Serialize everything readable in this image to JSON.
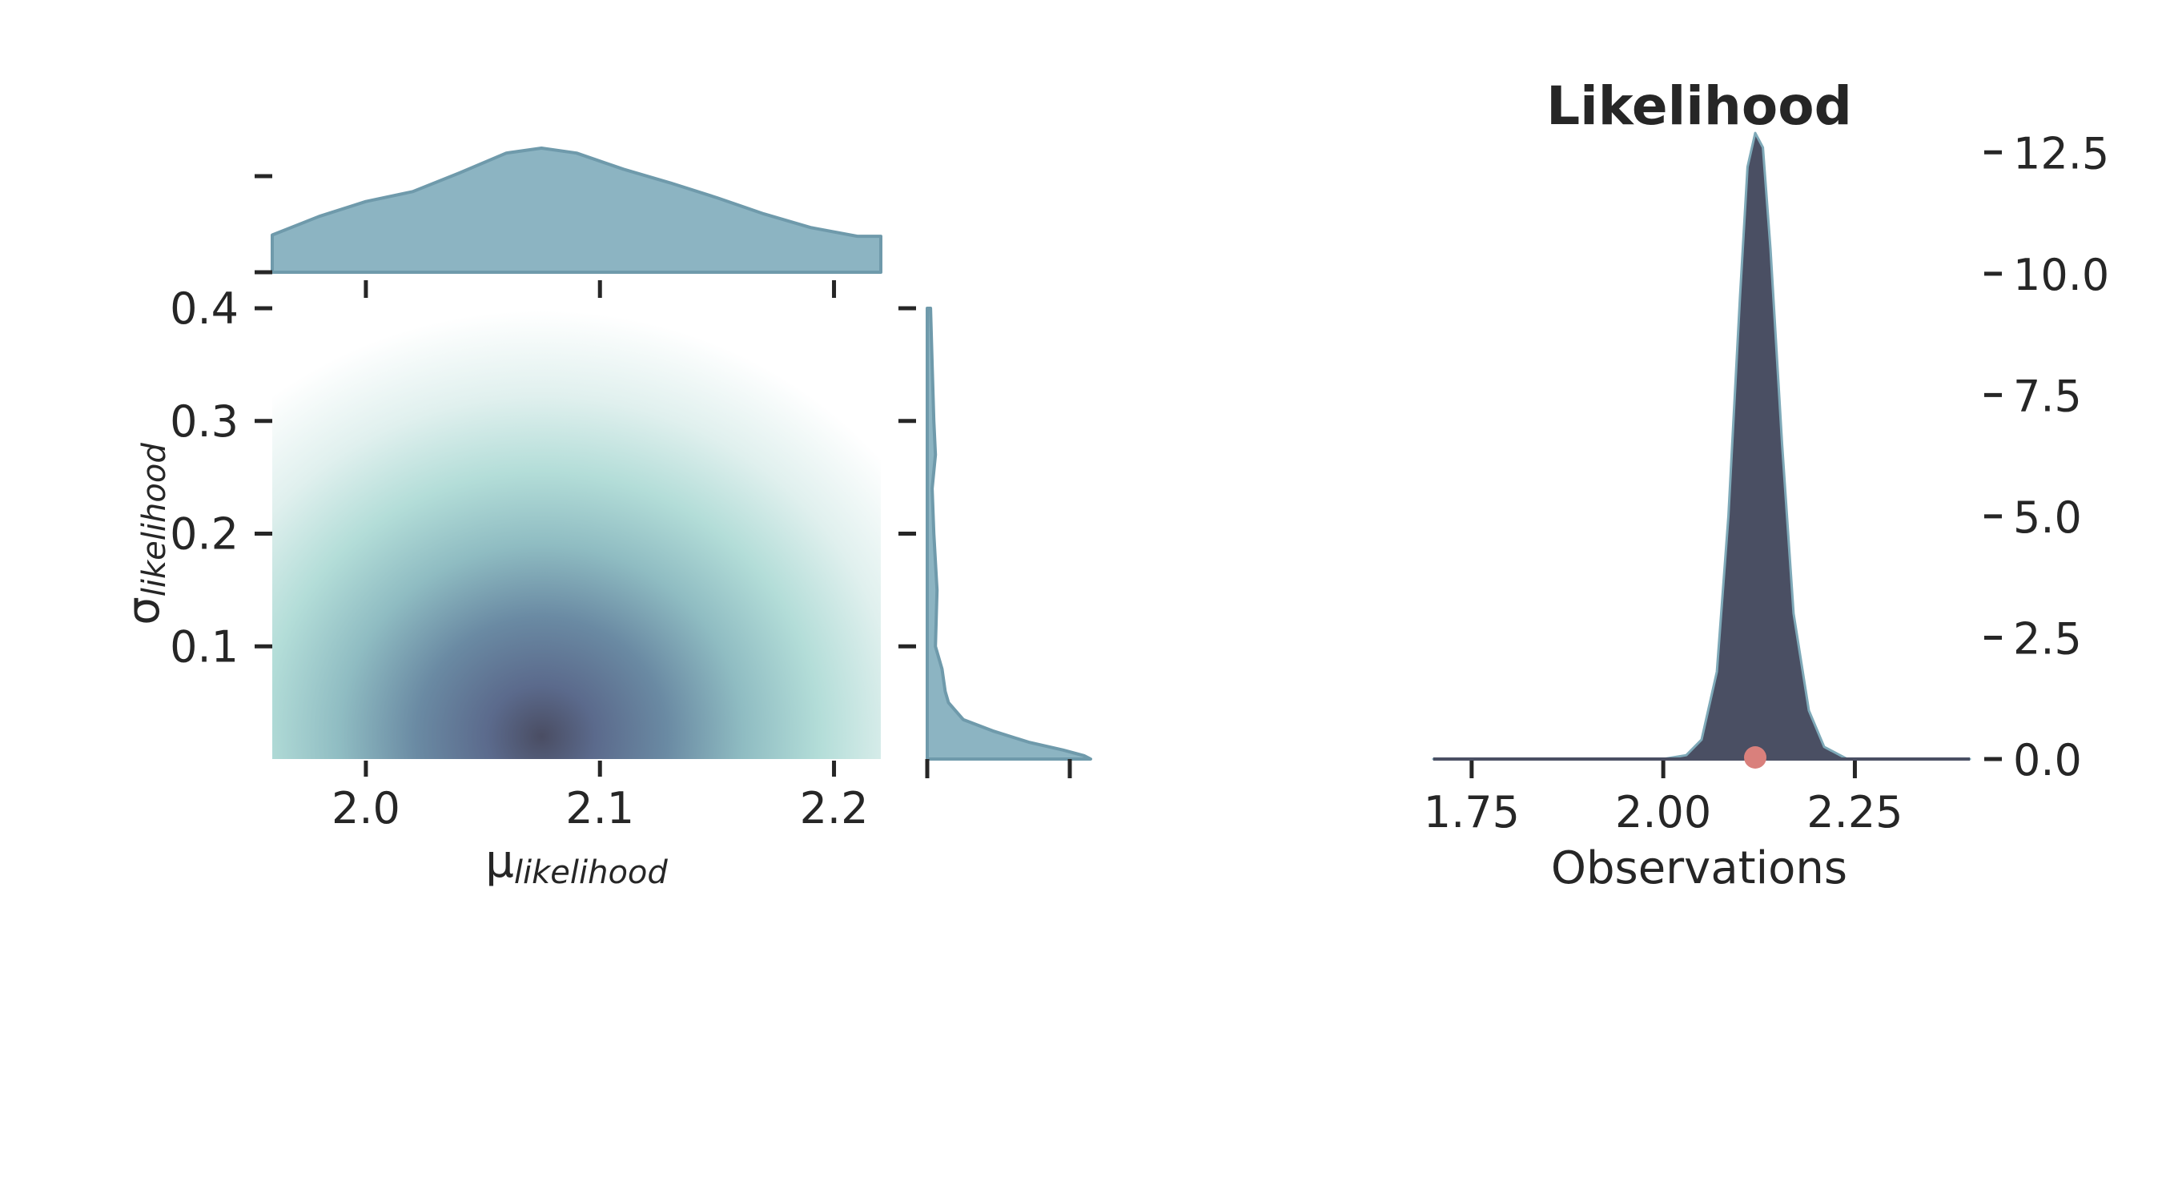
{
  "chart_data": [
    {
      "type": "heatmap",
      "subtype": "joint-kde",
      "xlabel_symbol": "μ",
      "xlabel_sub": "likelihood",
      "ylabel_symbol": "σ",
      "ylabel_sub": "likelihood",
      "xlim": [
        1.96,
        2.22
      ],
      "ylim": [
        0.0,
        0.4
      ],
      "xticks": [
        2.0,
        2.1,
        2.2
      ],
      "xtick_labels": [
        "2.0",
        "2.1",
        "2.2"
      ],
      "yticks": [
        0.1,
        0.2,
        0.3,
        0.4
      ],
      "ytick_labels": [
        "0.1",
        "0.2",
        "0.3",
        "0.4"
      ],
      "density_peak": {
        "x": 2.075,
        "y": 0.02
      },
      "colormap": [
        "#ffffff",
        "#e0f0ee",
        "#b3ddd8",
        "#8fbcc2",
        "#6a8aa3",
        "#5b6a8c",
        "#4a4d63"
      ],
      "marginal_x": {
        "x": [
          1.96,
          1.98,
          2.0,
          2.02,
          2.04,
          2.06,
          2.075,
          2.09,
          2.11,
          2.13,
          2.15,
          2.17,
          2.19,
          2.21,
          2.22
        ],
        "density": [
          0.3,
          0.45,
          0.57,
          0.65,
          0.8,
          0.96,
          1.0,
          0.96,
          0.83,
          0.72,
          0.6,
          0.47,
          0.36,
          0.29,
          0.29
        ],
        "color": "#8cb4c2"
      },
      "marginal_y": {
        "y": [
          0.4,
          0.35,
          0.3,
          0.27,
          0.24,
          0.2,
          0.15,
          0.1,
          0.08,
          0.06,
          0.05,
          0.035,
          0.025,
          0.015,
          0.008,
          0.003,
          0.0
        ],
        "density": [
          0.02,
          0.03,
          0.04,
          0.05,
          0.03,
          0.04,
          0.06,
          0.05,
          0.09,
          0.11,
          0.13,
          0.22,
          0.4,
          0.62,
          0.83,
          0.96,
          1.0
        ],
        "color": "#8cb4c2"
      }
    },
    {
      "type": "area",
      "title": "Likelihood",
      "xlabel": "Observations",
      "xlim": [
        1.7,
        2.4
      ],
      "ylim": [
        0,
        13
      ],
      "xticks": [
        1.75,
        2.0,
        2.25
      ],
      "xtick_labels": [
        "1.75",
        "2.00",
        "2.25"
      ],
      "yticks": [
        0,
        2.5,
        5,
        7.5,
        10,
        12.5
      ],
      "ytick_labels": [
        "0.0",
        "2.5",
        "5.0",
        "7.5",
        "10.0",
        "12.5"
      ],
      "y_axis_position": "right",
      "fill_color": "#4a4f63",
      "edge_color": "#7ea9b8",
      "x": [
        1.7,
        2.0,
        2.03,
        2.05,
        2.07,
        2.085,
        2.1,
        2.11,
        2.12,
        2.13,
        2.14,
        2.155,
        2.17,
        2.19,
        2.21,
        2.24,
        2.4
      ],
      "y": [
        0,
        0,
        0.08,
        0.4,
        1.8,
        5.0,
        9.5,
        12.2,
        12.9,
        12.6,
        10.5,
        6.5,
        3.0,
        1.0,
        0.25,
        0,
        0
      ],
      "observation_x": 2.12,
      "observation_color": "#d9807c"
    }
  ]
}
